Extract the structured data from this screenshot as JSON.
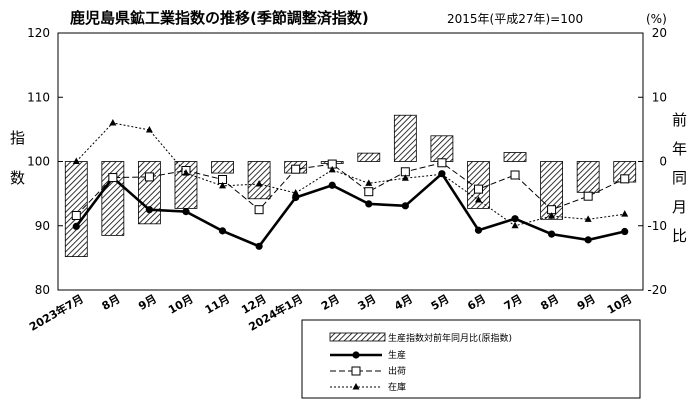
{
  "chart_data": {
    "type": "bar",
    "title": "鹿児島県鉱工業指数の推移(季節調整済指数)",
    "base_note": "2015年(平成27年)=100",
    "y_left": {
      "label": "指数",
      "ylim": [
        80,
        120
      ],
      "ticks": [
        80,
        90,
        100,
        110,
        120
      ]
    },
    "y_right": {
      "label": "前年同月比",
      "unit": "(%)",
      "ylim": [
        -20,
        20
      ],
      "ticks": [
        -20,
        -10,
        0,
        10,
        20
      ]
    },
    "categories": [
      "2023年7月",
      "8月",
      "9月",
      "10月",
      "11月",
      "12月",
      "2024年1月",
      "2月",
      "3月",
      "4月",
      "5月",
      "6月",
      "7月",
      "8月",
      "9月",
      "10月"
    ],
    "series": [
      {
        "name": "生産指数対前年同月比(原指数)",
        "axis": "right",
        "kind": "bar",
        "values": [
          -14.8,
          -11.5,
          -9.7,
          -7.3,
          -1.8,
          -5.8,
          -1.8,
          -0.3,
          1.3,
          7.2,
          4.0,
          -7.3,
          1.4,
          -9.0,
          -4.8,
          -3.2
        ]
      },
      {
        "name": "生産",
        "axis": "left",
        "kind": "line",
        "style": "solid",
        "values": [
          89.9,
          97.5,
          92.5,
          92.2,
          89.2,
          86.8,
          94.4,
          96.3,
          93.4,
          93.1,
          98.1,
          89.3,
          91.1,
          88.7,
          87.8,
          89.1
        ]
      },
      {
        "name": "出荷",
        "axis": "left",
        "kind": "line",
        "style": "dashed",
        "values": [
          91.6,
          97.5,
          97.6,
          98.6,
          97.2,
          92.5,
          98.8,
          99.6,
          95.3,
          98.4,
          99.8,
          95.7,
          97.9,
          92.5,
          94.6,
          97.3
        ]
      },
      {
        "name": "在庫",
        "axis": "right",
        "kind": "line",
        "style": "dotted",
        "values": [
          0.0,
          6.0,
          4.9,
          -1.8,
          -3.8,
          -3.5,
          -4.9,
          -1.3,
          -3.4,
          -2.6,
          -2.0,
          -6.0,
          -10.0,
          -8.5,
          -9.0,
          -8.2
        ]
      }
    ]
  }
}
